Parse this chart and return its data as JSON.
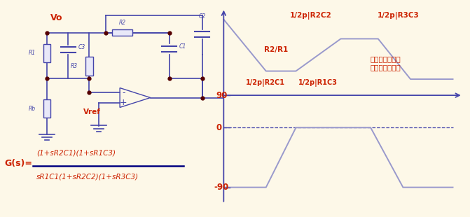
{
  "bg_color": "#fdf8e8",
  "circuit_color": "#4444aa",
  "red_color": "#cc2200",
  "formula_line_color": "#000080",
  "bode_gain_x": [
    0.3,
    2.0,
    3.2,
    5.0,
    6.5,
    7.8,
    9.5
  ],
  "bode_gain_y": [
    9.2,
    6.0,
    6.0,
    8.0,
    8.0,
    5.5,
    5.5
  ],
  "bode_phase_x": [
    0.3,
    2.0,
    3.2,
    4.5,
    6.2,
    7.5,
    9.5
  ],
  "bode_phase_y": [
    -1.2,
    -1.2,
    2.5,
    2.5,
    2.5,
    -1.2,
    -1.2
  ],
  "labels": {
    "Vo": "Vo",
    "Vref": "Vref",
    "freq3": "1/2p|R2C2",
    "freq4": "1/2p|R3C3",
    "ratio": "R2/R1",
    "freq1": "1/2p|R2C1",
    "freq2": "1/2p|R1C3",
    "note": "适用于传递函数\n有双极点的补償",
    "phase90": "90",
    "phase0": "0",
    "phasem90": "-90",
    "formula_num": "(1+sR2C1)(1+sR1C3)",
    "formula_den": "sR1C1(1+sR2C2)(1+sR3C3)",
    "Gs": "G(s)="
  }
}
